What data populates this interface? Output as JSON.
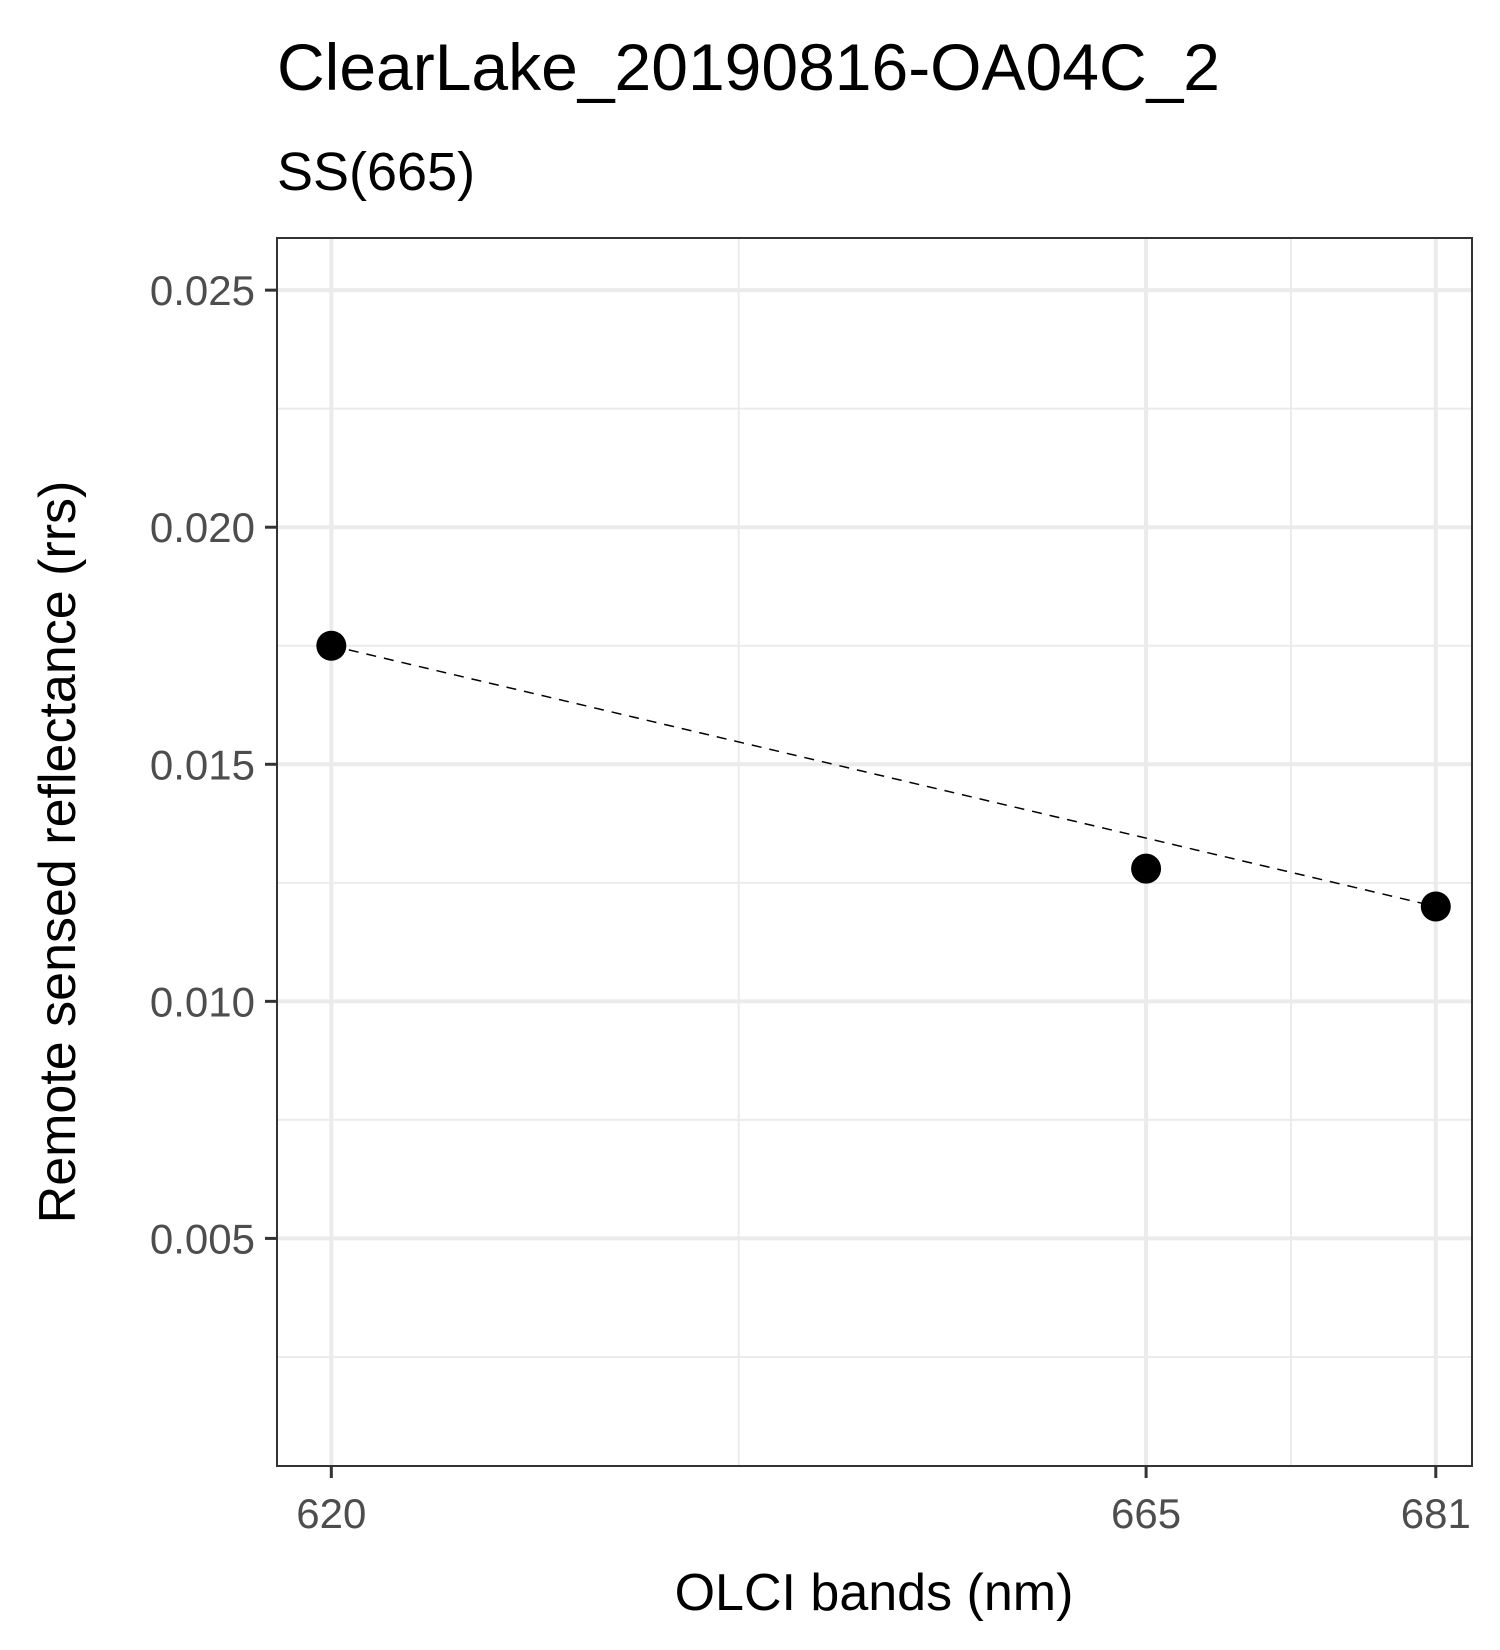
{
  "chart_data": {
    "type": "scatter",
    "title": "ClearLake_20190816-OA04C_2",
    "subtitle": "SS(665)",
    "xlabel": "OLCI bands (nm)",
    "ylabel": "Remote sensed reflectance (rrs)",
    "x_ticks": [
      620,
      665,
      681
    ],
    "x_tick_labels": [
      "620",
      "665",
      "681"
    ],
    "x_minor_gridlines": [
      642.5,
      673
    ],
    "xlim": [
      617,
      683
    ],
    "y_ticks": [
      0.005,
      0.01,
      0.015,
      0.02,
      0.025
    ],
    "y_tick_labels": [
      "0.005",
      "0.010",
      "0.015",
      "0.020",
      "0.025"
    ],
    "y_minor_gridlines": [
      0.0025,
      0.0075,
      0.0125,
      0.0175,
      0.0225
    ],
    "ylim": [
      0.0002,
      0.0261
    ],
    "grid": true,
    "series": [
      {
        "points": [
          {
            "x": 620,
            "y": 0.0175
          },
          {
            "x": 665,
            "y": 0.0128
          },
          {
            "x": 681,
            "y": 0.012
          }
        ]
      }
    ],
    "trend_line": {
      "style": "dashed",
      "from": {
        "x": 620,
        "y": 0.0175
      },
      "to": {
        "x": 681,
        "y": 0.012
      }
    },
    "colors": {
      "points": "#000000",
      "grid": "#ebebeb",
      "panel_border": "#333333",
      "tick_text": "#4d4d4d"
    }
  }
}
